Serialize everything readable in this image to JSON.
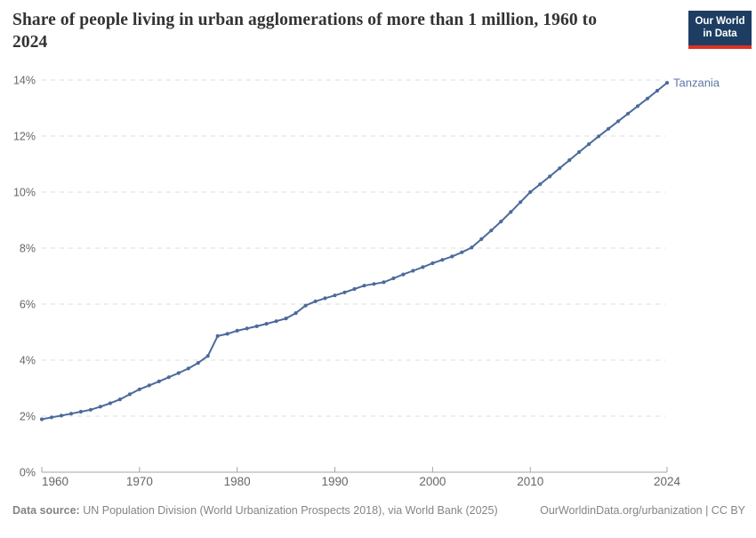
{
  "header": {
    "title": "Share of people living in urban agglomerations of more than 1 million, 1960 to 2024",
    "logo_line1": "Our World",
    "logo_line2": "in Data"
  },
  "chart_data": {
    "type": "line",
    "title": "Share of people living in urban agglomerations of more than 1 million, 1960 to 2024",
    "xlabel": "",
    "ylabel": "",
    "xlim": [
      1960,
      2024
    ],
    "ylim": [
      0,
      14
    ],
    "grid": "dashed-horizontal",
    "legend_position": "end-of-line",
    "x_ticks": [
      1960,
      1970,
      1980,
      1990,
      2000,
      2010,
      2024
    ],
    "y_ticks": [
      "0%",
      "2%",
      "4%",
      "6%",
      "8%",
      "10%",
      "12%",
      "14%"
    ],
    "series": [
      {
        "name": "Tanzania",
        "color": "#4c6a9c",
        "label_color": "#5d77a8",
        "x": [
          1960,
          1961,
          1962,
          1963,
          1964,
          1965,
          1966,
          1967,
          1968,
          1969,
          1970,
          1971,
          1972,
          1973,
          1974,
          1975,
          1976,
          1977,
          1978,
          1979,
          1980,
          1981,
          1982,
          1983,
          1984,
          1985,
          1986,
          1987,
          1988,
          1989,
          1990,
          1991,
          1992,
          1993,
          1994,
          1995,
          1996,
          1997,
          1998,
          1999,
          2000,
          2001,
          2002,
          2003,
          2004,
          2005,
          2006,
          2007,
          2008,
          2009,
          2010,
          2011,
          2012,
          2013,
          2014,
          2015,
          2016,
          2017,
          2018,
          2019,
          2020,
          2021,
          2022,
          2023,
          2024
        ],
        "values": [
          1.89,
          1.96,
          2.02,
          2.09,
          2.16,
          2.23,
          2.34,
          2.46,
          2.6,
          2.78,
          2.96,
          3.1,
          3.24,
          3.39,
          3.54,
          3.7,
          3.9,
          4.15,
          4.86,
          4.94,
          5.05,
          5.13,
          5.21,
          5.3,
          5.39,
          5.49,
          5.68,
          5.95,
          6.1,
          6.21,
          6.31,
          6.42,
          6.54,
          6.66,
          6.72,
          6.78,
          6.92,
          7.06,
          7.19,
          7.32,
          7.46,
          7.58,
          7.7,
          7.85,
          8.02,
          8.32,
          8.63,
          8.95,
          9.29,
          9.64,
          10.0,
          10.28,
          10.56,
          10.85,
          11.14,
          11.43,
          11.71,
          11.99,
          12.26,
          12.53,
          12.8,
          13.07,
          13.34,
          13.62,
          13.9
        ]
      }
    ]
  },
  "footer": {
    "source_label": "Data source:",
    "source_text": " UN Population Division (World Urbanization Prospects 2018), via World Bank (2025)",
    "link_text": "OurWorldinData.org/urbanization | CC BY"
  },
  "colors": {
    "line": "#4c6a9c",
    "entity_label": "#5d77a8",
    "grid": "#dedede",
    "axis": "#a5a5a5",
    "tick_label": "#666666",
    "title": "#333333",
    "footer": "#858585",
    "logo_bg": "#1d3d63",
    "logo_red": "#dc3224"
  }
}
